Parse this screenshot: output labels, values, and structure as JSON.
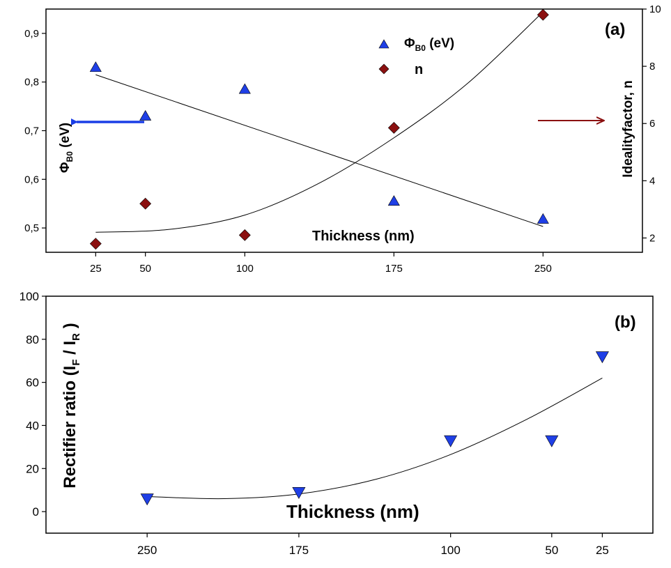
{
  "colors": {
    "phi_marker": "#1f3fe6",
    "n_marker": "#8b1010",
    "left_arrow": "#1a3ee6",
    "right_arrow": "#8b1010",
    "fit_line": "#000000"
  },
  "chart_data": [
    {
      "panel": "(a)",
      "type": "scatter",
      "x_title": "Thickness (nm)",
      "xlim": [
        0,
        300
      ],
      "x_ticks": [
        25,
        50,
        100,
        175,
        250
      ],
      "y_left": {
        "label_main": "Φ",
        "label_sub": "B0",
        "label_tail": " (eV)",
        "lim": [
          0.45,
          0.95
        ],
        "ticks": [
          0.5,
          0.6,
          0.7,
          0.8,
          0.9
        ],
        "tick_labels": [
          "0,5",
          "0,6",
          "0,7",
          "0,8",
          "0,9"
        ]
      },
      "y_right": {
        "label": "Idealityfactor, n",
        "lim": [
          1.5,
          10
        ],
        "ticks": [
          2,
          4,
          6,
          8,
          10
        ],
        "tick_labels": [
          "2",
          "4",
          "6",
          "8",
          "10"
        ]
      },
      "series": [
        {
          "name_main": "Φ",
          "name_sub": "B0",
          "name_tail": " (eV)",
          "marker": "triangle-up",
          "axis": "left",
          "x": [
            25,
            50,
            100,
            175,
            250
          ],
          "y": [
            0.83,
            0.73,
            0.785,
            0.555,
            0.518
          ],
          "fit": {
            "kind": "linear",
            "x": [
              25,
              250
            ],
            "y": [
              0.815,
              0.503
            ]
          }
        },
        {
          "name": "n",
          "marker": "diamond",
          "axis": "right",
          "x": [
            25,
            50,
            100,
            175,
            250
          ],
          "y": [
            1.8,
            3.2,
            2.1,
            5.85,
            9.8
          ],
          "fit": {
            "kind": "quadratic",
            "x": [
              25,
              62,
              100,
              137,
              175,
              212,
              250
            ],
            "y": [
              2.2,
              2.3,
              2.8,
              3.9,
              5.5,
              7.4,
              9.9
            ]
          }
        }
      ],
      "legend": "top-center",
      "grid": false
    },
    {
      "panel": "(b)",
      "type": "scatter",
      "x_title": "Thickness (nm)",
      "xlim": [
        300,
        0
      ],
      "x_ticks": [
        250,
        175,
        100,
        50,
        25
      ],
      "y_label_parts": [
        "Rectifier ratio (I",
        "F",
        " / I",
        "R",
        " )"
      ],
      "ylim": [
        -10,
        100
      ],
      "y_ticks": [
        0,
        20,
        40,
        60,
        80,
        100
      ],
      "series": [
        {
          "marker": "triangle-down",
          "x": [
            250,
            175,
            100,
            50,
            25
          ],
          "y": [
            6,
            9,
            33,
            33,
            72
          ],
          "fit": {
            "kind": "quadratic",
            "x": [
              250,
              212,
              175,
              137,
              100,
              62,
              25
            ],
            "y": [
              7,
              6,
              8.2,
              15,
              26.5,
              43,
              62
            ]
          }
        }
      ],
      "grid": false
    }
  ]
}
